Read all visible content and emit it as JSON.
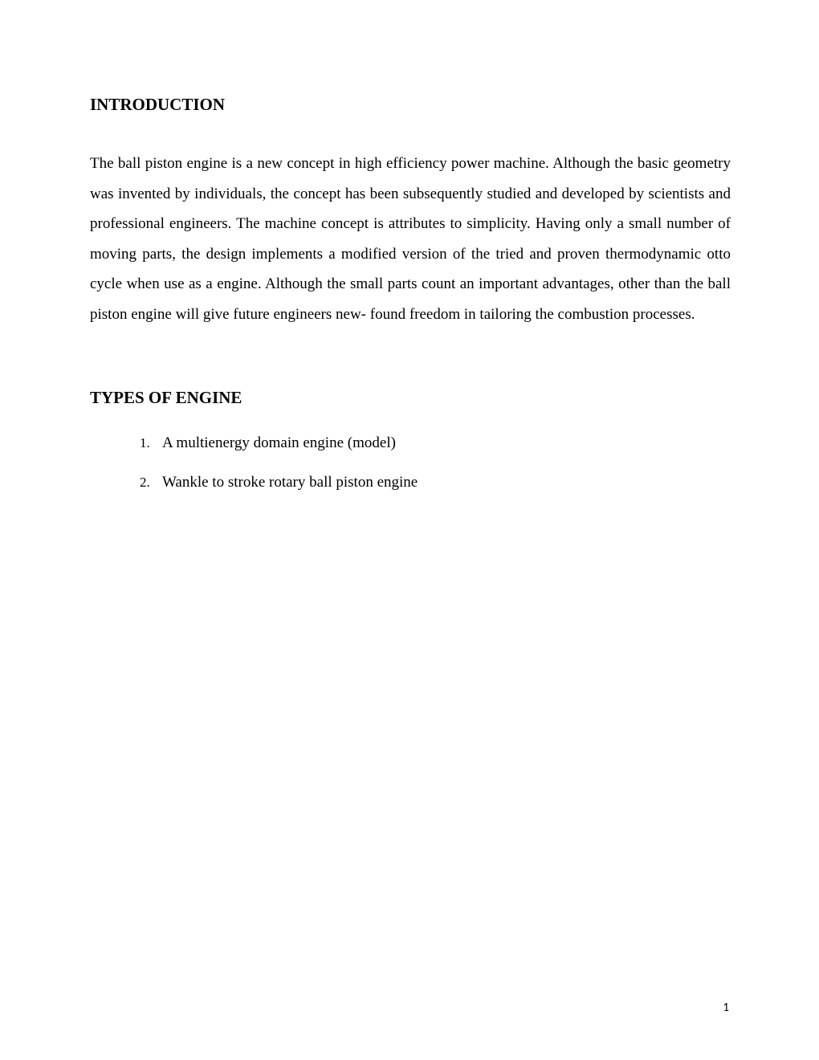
{
  "headings": {
    "introduction": "INTRODUCTION",
    "types": "TYPES OF ENGINE"
  },
  "paragraphs": {
    "intro": "The ball piston engine is a new concept in high efficiency power machine. Although the basic geometry was invented by individuals, the concept has been subsequently studied and developed by scientists and professional engineers. The machine concept is attributes to simplicity. Having only a small number of moving parts, the design implements a modified version of the tried and proven thermodynamic otto cycle when use as a engine. Although the small parts count an important advantages, other than the ball piston engine will give future engineers new- found freedom in tailoring the combustion processes."
  },
  "list": {
    "items": [
      {
        "number": "1.",
        "text": "A multienergy domain engine (model)"
      },
      {
        "number": "2.",
        "text": "Wankle to stroke rotary ball piston engine"
      }
    ]
  },
  "pageNumber": "1"
}
